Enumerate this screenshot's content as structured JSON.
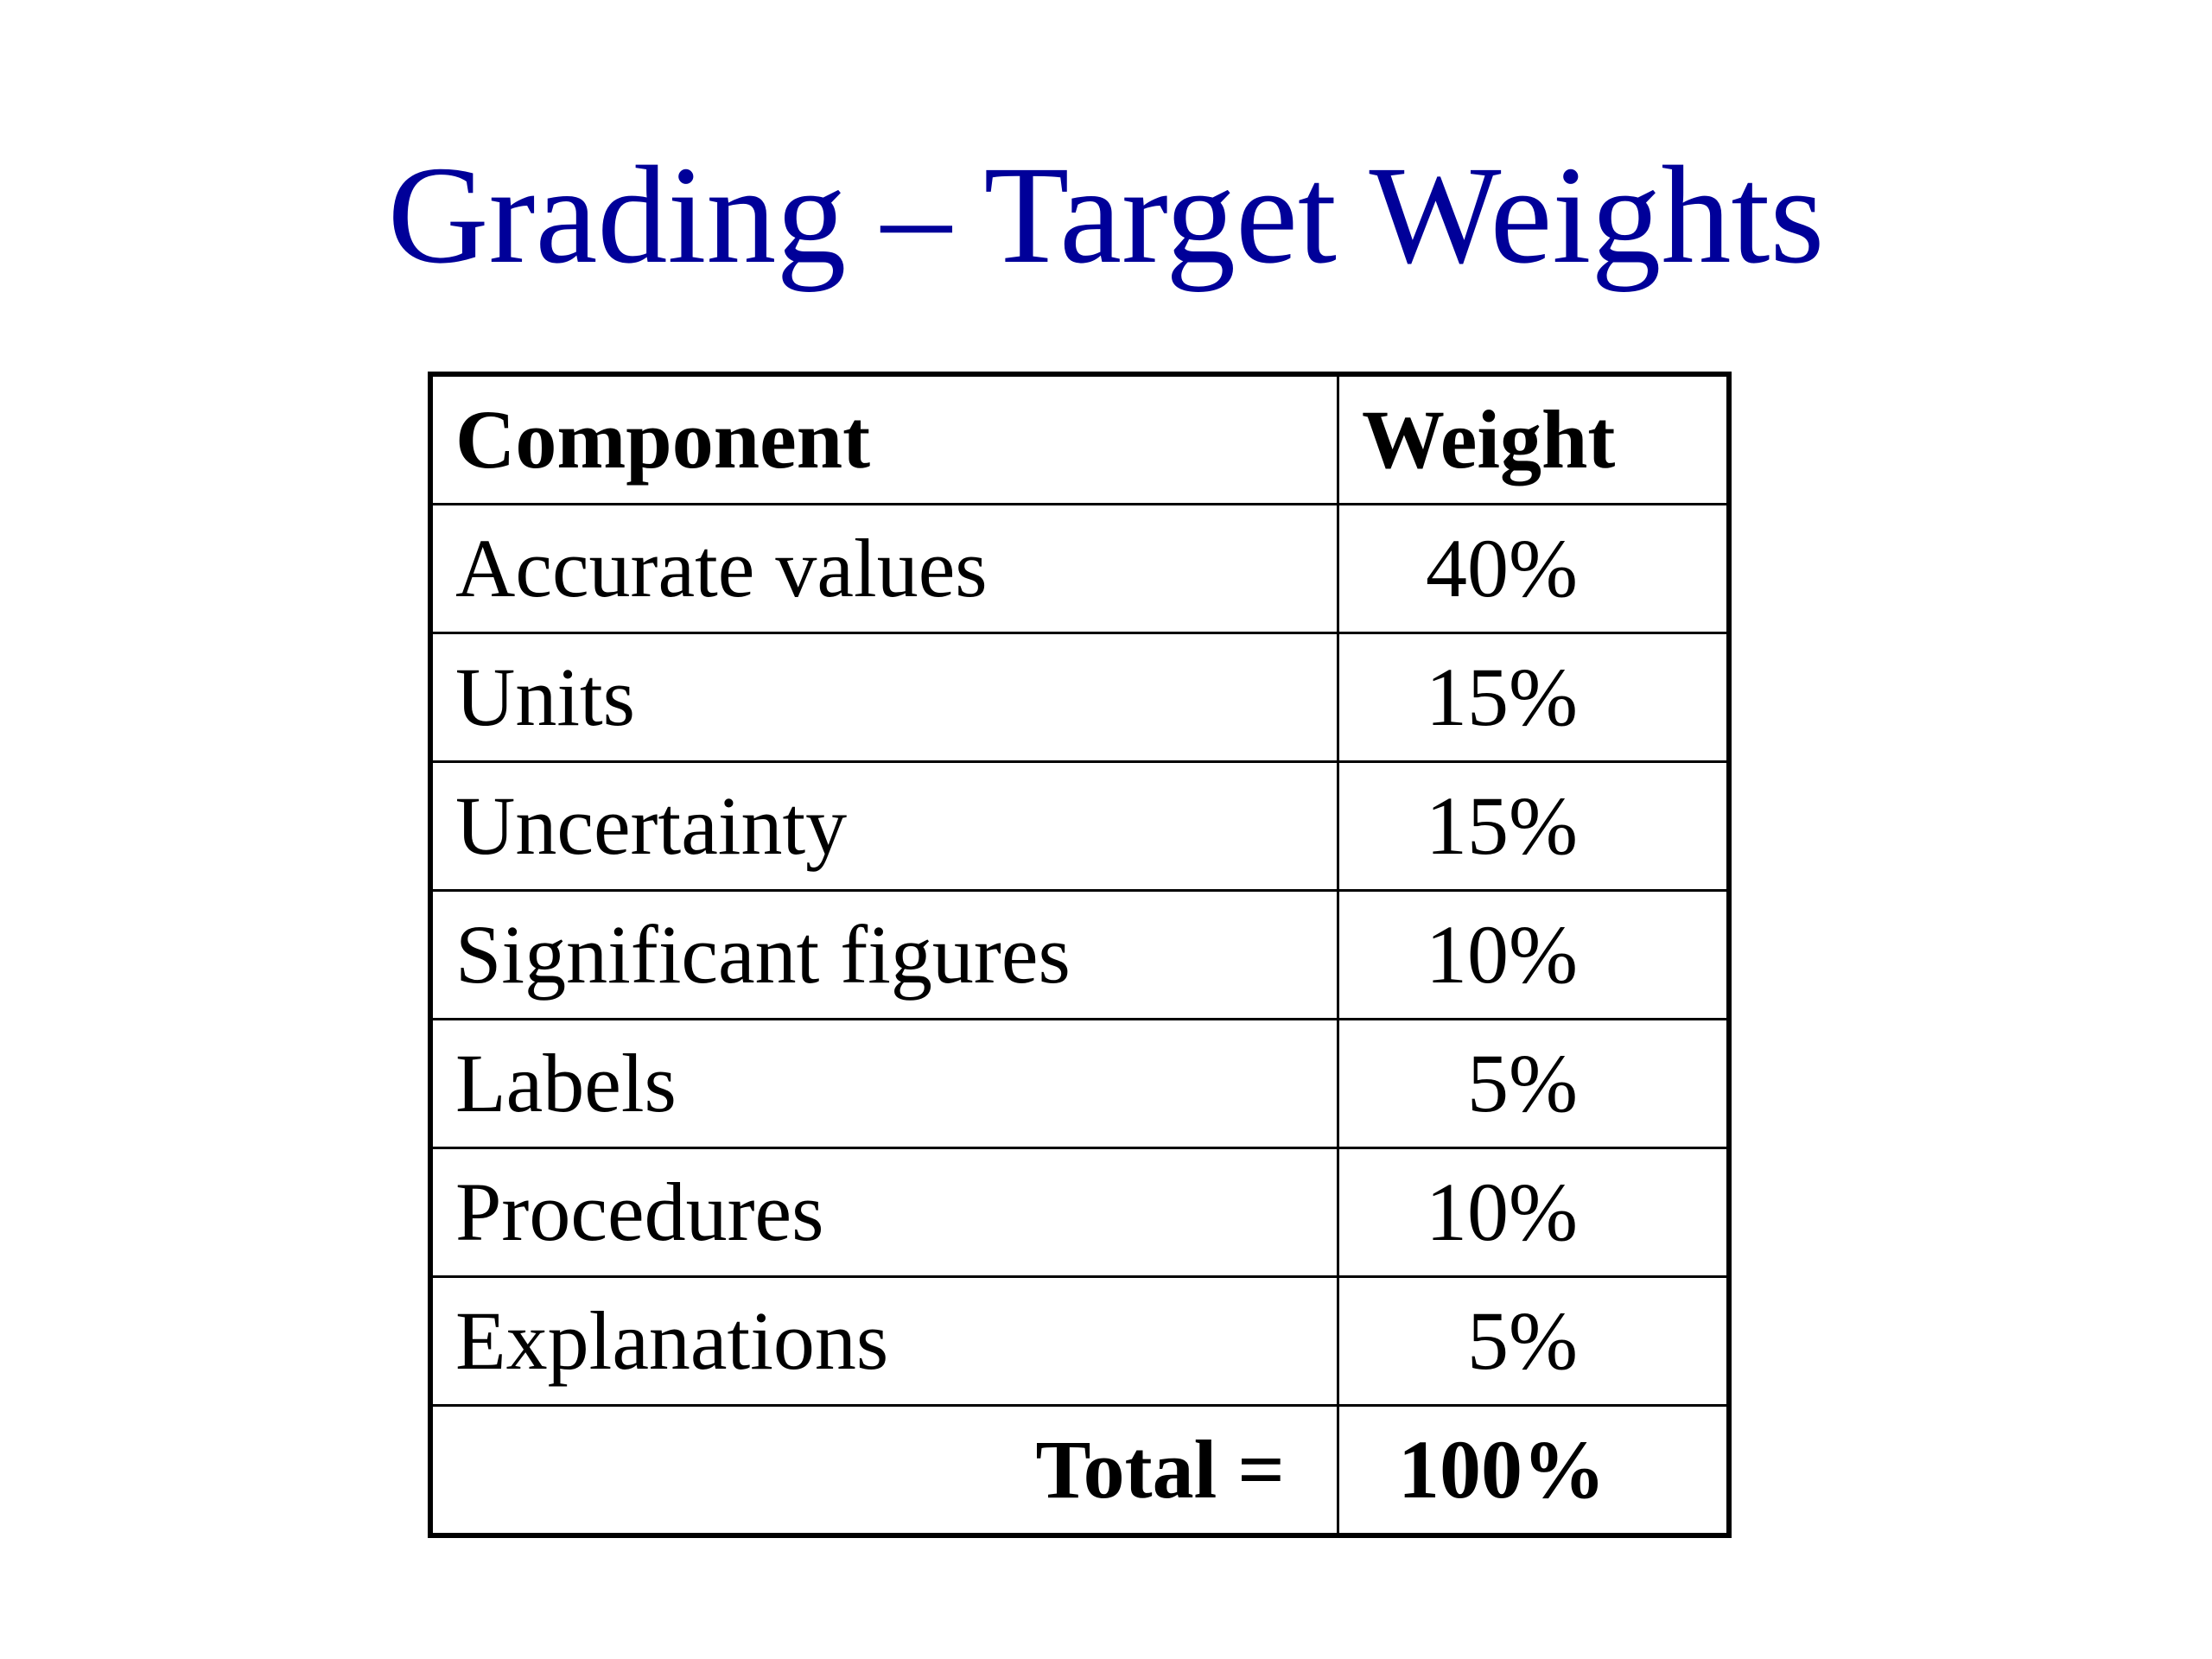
{
  "title": "Grading – Target Weights",
  "table": {
    "header": [
      "Component",
      "Weight"
    ],
    "rows": [
      [
        "Accurate values",
        "40%"
      ],
      [
        "Units",
        "15%"
      ],
      [
        "Uncertainty",
        "15%"
      ],
      [
        "Significant figures",
        "10%"
      ],
      [
        "Labels",
        "5%"
      ],
      [
        "Procedures",
        "10%"
      ],
      [
        "Explanations",
        "5%"
      ]
    ],
    "total": [
      "Total =",
      "100%"
    ]
  }
}
